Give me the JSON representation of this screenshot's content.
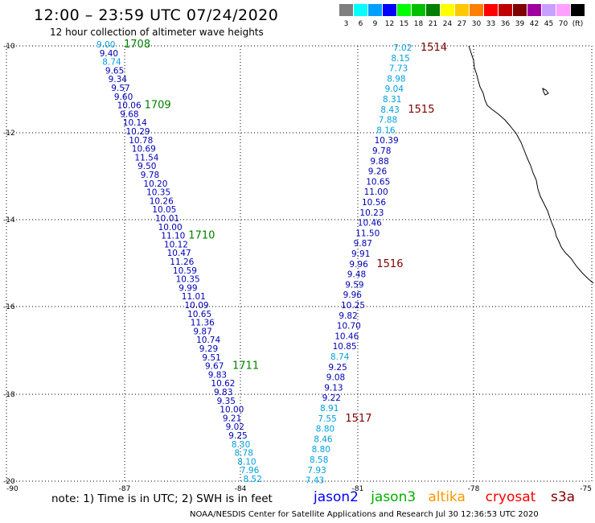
{
  "title": "12:00 – 23:59 UTC 07/24/2020",
  "subtitle": "12 hour collection of altimeter wave heights",
  "colorbar": [
    {
      "label": "3",
      "color": "#7f7f7f"
    },
    {
      "label": "6",
      "color": "#00ffff"
    },
    {
      "label": "9",
      "color": "#00a0ff"
    },
    {
      "label": "12",
      "color": "#0000ff"
    },
    {
      "label": "15",
      "color": "#00ff00"
    },
    {
      "label": "18",
      "color": "#00c000"
    },
    {
      "label": "21",
      "color": "#008000"
    },
    {
      "label": "24",
      "color": "#ffff00"
    },
    {
      "label": "27",
      "color": "#ffc800"
    },
    {
      "label": "30",
      "color": "#ff8000"
    },
    {
      "label": "33",
      "color": "#ff0000"
    },
    {
      "label": "36",
      "color": "#c00000"
    },
    {
      "label": "39",
      "color": "#800000"
    },
    {
      "label": "42",
      "color": "#a000a0"
    },
    {
      "label": "45",
      "color": "#c8a0ff"
    },
    {
      "label": "70",
      "color": "#ffa0ff"
    },
    {
      "label": "(ft)",
      "color": "#000000"
    }
  ],
  "axes": {
    "lat_labels": [
      "-10",
      "-12",
      "-14",
      "-16",
      "-18",
      "-20"
    ],
    "lon_labels": [
      "-90",
      "-87",
      "-84",
      "-81",
      "-78",
      "-75"
    ]
  },
  "colors": {
    "dark_blue": "#0000b4",
    "light_blue": "#00a0dc",
    "green": "#008000",
    "maroon": "#800000"
  },
  "track1": {
    "values": [
      "9.00",
      "9.40",
      "8.74",
      "9.65",
      "9.34",
      "9.57",
      "9.60",
      "10.06",
      "9.68",
      "10.14",
      "10.29",
      "10.78",
      "10.69",
      "11.54",
      "9.50",
      "9.78",
      "10.20",
      "10.35",
      "10.26",
      "10.05",
      "10.01",
      "10.00",
      "11.10",
      "10.12",
      "10.47",
      "11.26",
      "10.59",
      "10.35",
      "9.99",
      "11.01",
      "10.09",
      "10.65",
      "11.36",
      "9.87",
      "10.74",
      "9.29",
      "9.51",
      "9.67",
      "9.83",
      "10.62",
      "9.83",
      "9.35",
      "10.00",
      "9.21",
      "9.02",
      "9.25",
      "8.30",
      "8.78",
      "8.10",
      "7.96",
      "8.52"
    ],
    "light": [
      0,
      2,
      46,
      47,
      48,
      49,
      50
    ],
    "times": [
      {
        "idx": 0,
        "label": "1708"
      },
      {
        "idx": 7,
        "label": "1709"
      },
      {
        "idx": 22,
        "label": "1710"
      },
      {
        "idx": 37,
        "label": "1711"
      }
    ]
  },
  "track2": {
    "values": [
      "7.02",
      "8.15",
      "7.73",
      "8.98",
      "9.04",
      "8.31",
      "8.43",
      "7.88",
      "8.16",
      "10.39",
      "9.78",
      "9.88",
      "9.26",
      "10.65",
      "11.00",
      "10.56",
      "10.23",
      "10.46",
      "11.50",
      "9.87",
      "9.91",
      "9.96",
      "9.48",
      "9.59",
      "9.96",
      "10.25",
      "9.82",
      "10.70",
      "10.46",
      "10.85",
      "8.74",
      "9.25",
      "9.08",
      "9.13",
      "9.22",
      "8.91",
      "7.55",
      "8.80",
      "8.46",
      "8.80",
      "8.58",
      "7.93",
      "7.43"
    ],
    "dark": [
      9,
      10,
      11,
      12,
      13,
      14,
      15,
      16,
      17,
      18,
      19,
      20,
      21,
      22,
      23,
      24,
      25,
      26,
      27,
      28,
      29,
      31,
      32,
      33,
      34
    ],
    "times": [
      {
        "idx": 0,
        "label": "1514"
      },
      {
        "idx": 6,
        "label": "1515"
      },
      {
        "idx": 21,
        "label": "1516"
      },
      {
        "idx": 36,
        "label": "1517"
      }
    ]
  },
  "note": "note:  1) Time is in UTC;  2) SWH is in feet",
  "satellites": [
    {
      "name": "jason2",
      "color": "#0000ff"
    },
    {
      "name": "jason3",
      "color": "#00b000"
    },
    {
      "name": "altika",
      "color": "#ff9900"
    },
    {
      "name": "cryosat",
      "color": "#ff0000"
    },
    {
      "name": "s3a",
      "color": "#800000"
    }
  ],
  "credit": "NOAA/NESDIS Center for Satellite Applications and Research    Jul 30 12:36:53 UTC 2020"
}
